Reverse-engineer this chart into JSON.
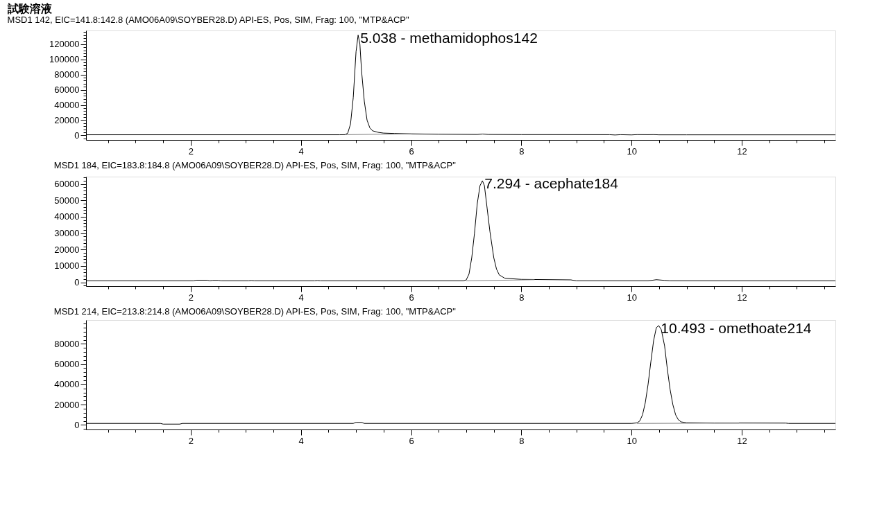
{
  "chart_data": [
    {
      "type": "line",
      "title": "試験溶液",
      "subtitle": "MSD1 142, EIC=141.8:142.8 (AMO06A09\\SOYBER28.D)    API-ES, Pos, SIM, Frag: 100, \"MTP&ACP\"",
      "xlim": [
        0.1,
        13.7
      ],
      "xticks": [
        {
          "value": 0.5,
          "label": null
        },
        {
          "value": 1,
          "label": null
        },
        {
          "value": 1.5,
          "label": null
        },
        2,
        {
          "value": 2.5,
          "label": null
        },
        {
          "value": 3,
          "label": null
        },
        {
          "value": 3.5,
          "label": null
        },
        4,
        {
          "value": 4.5,
          "label": null
        },
        {
          "value": 5,
          "label": null
        },
        {
          "value": 5.5,
          "label": null
        },
        6,
        {
          "value": 6.5,
          "label": null
        },
        {
          "value": 7,
          "label": null
        },
        {
          "value": 7.5,
          "label": null
        },
        8,
        {
          "value": 8.5,
          "label": null
        },
        {
          "value": 9,
          "label": null
        },
        {
          "value": 9.5,
          "label": null
        },
        10,
        {
          "value": 10.5,
          "label": null
        },
        {
          "value": 11,
          "label": null
        },
        {
          "value": 11.5,
          "label": null
        },
        12,
        {
          "value": 12.5,
          "label": null
        },
        {
          "value": 13,
          "label": null
        },
        {
          "value": 13.5,
          "label": null
        }
      ],
      "ylim": [
        -6000,
        138000
      ],
      "yticks": [
        {
          "value": -4000,
          "label": null
        },
        0,
        {
          "value": 4000,
          "label": null
        },
        {
          "value": 8000,
          "label": null
        },
        {
          "value": 12000,
          "label": null
        },
        {
          "value": 16000,
          "label": null
        },
        20000,
        {
          "value": 24000,
          "label": null
        },
        {
          "value": 28000,
          "label": null
        },
        {
          "value": 32000,
          "label": null
        },
        {
          "value": 36000,
          "label": null
        },
        40000,
        {
          "value": 44000,
          "label": null
        },
        {
          "value": 48000,
          "label": null
        },
        {
          "value": 52000,
          "label": null
        },
        {
          "value": 56000,
          "label": null
        },
        60000,
        {
          "value": 64000,
          "label": null
        },
        {
          "value": 68000,
          "label": null
        },
        {
          "value": 72000,
          "label": null
        },
        {
          "value": 76000,
          "label": null
        },
        80000,
        {
          "value": 84000,
          "label": null
        },
        {
          "value": 88000,
          "label": null
        },
        {
          "value": 92000,
          "label": null
        },
        {
          "value": 96000,
          "label": null
        },
        100000,
        {
          "value": 104000,
          "label": null
        },
        {
          "value": 108000,
          "label": null
        },
        {
          "value": 112000,
          "label": null
        },
        {
          "value": 116000,
          "label": null
        },
        120000,
        {
          "value": 124000,
          "label": null
        },
        {
          "value": 128000,
          "label": null
        },
        {
          "value": 132000,
          "label": null
        },
        {
          "value": 136000,
          "label": null
        }
      ],
      "series": [
        {
          "color": "#000000",
          "x": [
            0.1,
            4.7,
            4.8,
            4.85,
            4.9,
            4.95,
            5.0,
            5.038,
            5.07,
            5.1,
            5.15,
            5.2,
            5.25,
            5.3,
            5.4,
            5.5,
            5.7,
            6.0,
            6.5,
            7.2,
            7.3,
            7.4,
            8.0,
            9.6,
            9.7,
            9.8,
            10.0,
            10.1,
            10.3,
            10.4,
            10.5,
            11.0,
            13.7
          ],
          "values": [
            800,
            800,
            900,
            3000,
            15000,
            50000,
            110000,
            132000,
            120000,
            85000,
            45000,
            20000,
            10000,
            6000,
            4000,
            3000,
            2500,
            2000,
            1500,
            1200,
            1800,
            1200,
            1000,
            900,
            500,
            900,
            600,
            1000,
            900,
            1000,
            700,
            700,
            700
          ]
        },
        {
          "color": "#808080",
          "x": [
            4.8,
            6.0
          ],
          "values": [
            900,
            2000
          ]
        }
      ],
      "annotations": [
        {
          "text": "5.038 -  methamidophos142",
          "x": 5.038,
          "y": 132000
        }
      ]
    },
    {
      "type": "line",
      "subtitle": "MSD1 184, EIC=183.8:184.8 (AMO06A09\\SOYBER28.D)    API-ES, Pos, SIM, Frag: 100, \"MTP&ACP\"",
      "xlim": [
        0.1,
        13.7
      ],
      "xticks": [
        {
          "value": 0.5,
          "label": null
        },
        {
          "value": 1,
          "label": null
        },
        {
          "value": 1.5,
          "label": null
        },
        2,
        {
          "value": 2.5,
          "label": null
        },
        {
          "value": 3,
          "label": null
        },
        {
          "value": 3.5,
          "label": null
        },
        4,
        {
          "value": 4.5,
          "label": null
        },
        {
          "value": 5,
          "label": null
        },
        {
          "value": 5.5,
          "label": null
        },
        6,
        {
          "value": 6.5,
          "label": null
        },
        {
          "value": 7,
          "label": null
        },
        {
          "value": 7.5,
          "label": null
        },
        8,
        {
          "value": 8.5,
          "label": null
        },
        {
          "value": 9,
          "label": null
        },
        {
          "value": 9.5,
          "label": null
        },
        10,
        {
          "value": 10.5,
          "label": null
        },
        {
          "value": 11,
          "label": null
        },
        {
          "value": 11.5,
          "label": null
        },
        12,
        {
          "value": 12.5,
          "label": null
        },
        {
          "value": 13,
          "label": null
        },
        {
          "value": 13.5,
          "label": null
        }
      ],
      "ylim": [
        -2300,
        64500
      ],
      "yticks": [
        {
          "value": -2000,
          "label": null
        },
        0,
        {
          "value": 2000,
          "label": null
        },
        {
          "value": 4000,
          "label": null
        },
        {
          "value": 6000,
          "label": null
        },
        {
          "value": 8000,
          "label": null
        },
        10000,
        {
          "value": 12000,
          "label": null
        },
        {
          "value": 14000,
          "label": null
        },
        {
          "value": 16000,
          "label": null
        },
        {
          "value": 18000,
          "label": null
        },
        20000,
        {
          "value": 22000,
          "label": null
        },
        {
          "value": 24000,
          "label": null
        },
        {
          "value": 26000,
          "label": null
        },
        {
          "value": 28000,
          "label": null
        },
        30000,
        {
          "value": 32000,
          "label": null
        },
        {
          "value": 34000,
          "label": null
        },
        {
          "value": 36000,
          "label": null
        },
        {
          "value": 38000,
          "label": null
        },
        40000,
        {
          "value": 42000,
          "label": null
        },
        {
          "value": 44000,
          "label": null
        },
        {
          "value": 46000,
          "label": null
        },
        {
          "value": 48000,
          "label": null
        },
        50000,
        {
          "value": 52000,
          "label": null
        },
        {
          "value": 54000,
          "label": null
        },
        {
          "value": 56000,
          "label": null
        },
        {
          "value": 58000,
          "label": null
        },
        60000,
        {
          "value": 62000,
          "label": null
        },
        {
          "value": 64000,
          "label": null
        }
      ],
      "series": [
        {
          "color": "#000000",
          "x": [
            0.1,
            2.05,
            2.1,
            2.3,
            2.35,
            2.4,
            2.5,
            2.55,
            3.05,
            3.1,
            3.15,
            4.25,
            4.3,
            4.35,
            6.95,
            7.0,
            7.05,
            7.1,
            7.15,
            7.2,
            7.25,
            7.294,
            7.33,
            7.38,
            7.43,
            7.5,
            7.55,
            7.6,
            7.7,
            8.0,
            8.9,
            9.0,
            10.3,
            10.45,
            10.6,
            10.7,
            13.7
          ],
          "values": [
            900,
            900,
            1300,
            1300,
            900,
            1200,
            1200,
            900,
            900,
            1100,
            900,
            900,
            1100,
            900,
            900,
            1500,
            5000,
            15000,
            30000,
            48000,
            59000,
            62000,
            59000,
            45000,
            31000,
            15000,
            8000,
            4500,
            2500,
            1800,
            1500,
            900,
            900,
            1600,
            1200,
            900,
            900
          ]
        },
        {
          "color": "#808080",
          "x": [
            7.0,
            8.24
          ],
          "values": [
            900,
            1600
          ]
        }
      ],
      "annotations": [
        {
          "text": "7.294 -  acephate184",
          "x": 7.294,
          "y": 62000
        }
      ]
    },
    {
      "type": "line",
      "subtitle": "MSD1 214, EIC=213.8:214.8 (AMO06A09\\SOYBER28.D)    API-ES, Pos, SIM, Frag: 100, \"MTP&ACP\"",
      "xlim": [
        0.1,
        13.7
      ],
      "xticks": [
        {
          "value": 0.5,
          "label": null
        },
        {
          "value": 1,
          "label": null
        },
        {
          "value": 1.5,
          "label": null
        },
        2,
        {
          "value": 2.5,
          "label": null
        },
        {
          "value": 3,
          "label": null
        },
        {
          "value": 3.5,
          "label": null
        },
        4,
        {
          "value": 4.5,
          "label": null
        },
        {
          "value": 5,
          "label": null
        },
        {
          "value": 5.5,
          "label": null
        },
        6,
        {
          "value": 6.5,
          "label": null
        },
        {
          "value": 7,
          "label": null
        },
        {
          "value": 7.5,
          "label": null
        },
        8,
        {
          "value": 8.5,
          "label": null
        },
        {
          "value": 9,
          "label": null
        },
        {
          "value": 9.5,
          "label": null
        },
        10,
        {
          "value": 10.5,
          "label": null
        },
        {
          "value": 11,
          "label": null
        },
        {
          "value": 11.5,
          "label": null
        },
        12,
        {
          "value": 12.5,
          "label": null
        },
        {
          "value": 13,
          "label": null
        },
        {
          "value": 13.5,
          "label": null
        }
      ],
      "ylim": [
        -4500,
        103500
      ],
      "yticks": [
        {
          "value": -4000,
          "label": null
        },
        0,
        {
          "value": 4000,
          "label": null
        },
        {
          "value": 8000,
          "label": null
        },
        {
          "value": 12000,
          "label": null
        },
        {
          "value": 16000,
          "label": null
        },
        20000,
        {
          "value": 24000,
          "label": null
        },
        {
          "value": 28000,
          "label": null
        },
        {
          "value": 32000,
          "label": null
        },
        {
          "value": 36000,
          "label": null
        },
        40000,
        {
          "value": 44000,
          "label": null
        },
        {
          "value": 48000,
          "label": null
        },
        {
          "value": 52000,
          "label": null
        },
        {
          "value": 56000,
          "label": null
        },
        60000,
        {
          "value": 64000,
          "label": null
        },
        {
          "value": 68000,
          "label": null
        },
        {
          "value": 72000,
          "label": null
        },
        {
          "value": 76000,
          "label": null
        },
        80000,
        {
          "value": 84000,
          "label": null
        },
        {
          "value": 88000,
          "label": null
        },
        {
          "value": 92000,
          "label": null
        },
        {
          "value": 96000,
          "label": null
        },
        {
          "value": 100000,
          "label": null
        }
      ],
      "series": [
        {
          "color": "#000000",
          "x": [
            0.1,
            1.45,
            1.5,
            1.8,
            1.85,
            4.95,
            5.0,
            5.1,
            5.15,
            10.0,
            10.1,
            10.15,
            10.2,
            10.25,
            10.3,
            10.35,
            10.4,
            10.45,
            10.493,
            10.54,
            10.6,
            10.65,
            10.7,
            10.75,
            10.8,
            10.85,
            10.9,
            11.0,
            11.5,
            12.8,
            12.85,
            13.7
          ],
          "values": [
            1500,
            1500,
            800,
            800,
            1500,
            1500,
            2500,
            2500,
            1500,
            1500,
            2000,
            4000,
            10000,
            22000,
            40000,
            62000,
            83000,
            96000,
            98000,
            94000,
            78000,
            55000,
            35000,
            20000,
            10000,
            5000,
            3000,
            2200,
            1900,
            1800,
            1500,
            1500
          ]
        },
        {
          "color": "#808080",
          "x": [
            10.1,
            11.95
          ],
          "values": [
            1500,
            1800
          ]
        }
      ],
      "annotations": [
        {
          "text": "10.493 -  omethoate214",
          "x": 10.493,
          "y": 98000
        }
      ]
    }
  ]
}
